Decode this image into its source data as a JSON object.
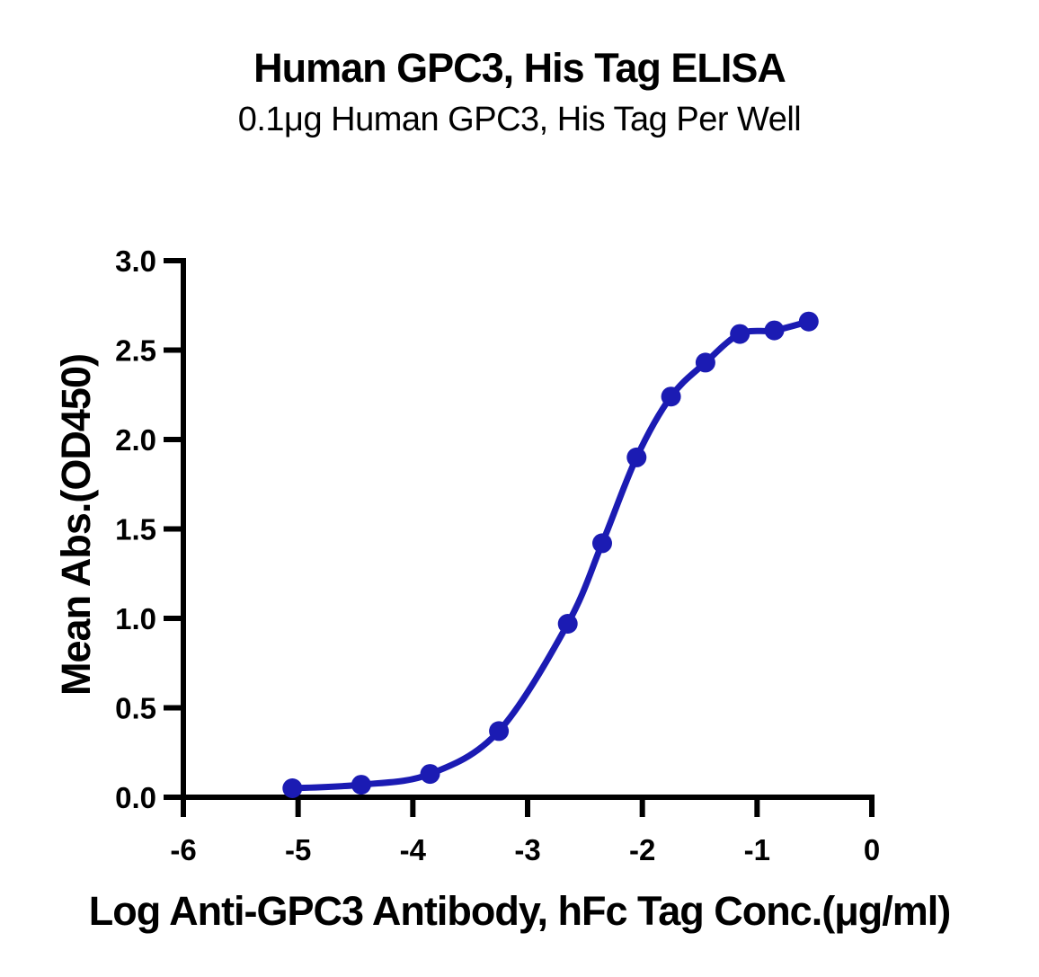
{
  "chart_data": {
    "type": "line",
    "title": "Human GPC3, His Tag ELISA",
    "subtitle": "0.1μg Human GPC3, His Tag Per Well",
    "xlabel": "Log Anti-GPC3 Antibody, hFc Tag Conc.(μg/ml)",
    "ylabel": "Mean Abs.(OD450)",
    "xlim": [
      -6,
      0
    ],
    "ylim": [
      0,
      3
    ],
    "x_ticks": [
      -6,
      -5,
      -4,
      -3,
      -2,
      -1,
      0
    ],
    "x_tick_labels": [
      "-6",
      "-5",
      "-4",
      "-3",
      "-2",
      "-1",
      "0"
    ],
    "y_ticks": [
      0,
      0.5,
      1,
      1.5,
      2,
      2.5,
      3
    ],
    "y_tick_labels": [
      "0.0",
      "0.5",
      "1.0",
      "1.5",
      "2.0",
      "2.5",
      "3.0"
    ],
    "grid": false,
    "legend": null,
    "axis_color": "#000000",
    "series": [
      {
        "color": "#1b1bb3",
        "marker": "circle",
        "x": [
          -5.05,
          -4.45,
          -3.85,
          -3.25,
          -2.65,
          -2.35,
          -2.05,
          -1.75,
          -1.45,
          -1.15,
          -0.85,
          -0.55
        ],
        "y": [
          0.05,
          0.07,
          0.13,
          0.37,
          0.97,
          1.42,
          1.9,
          2.24,
          2.43,
          2.59,
          2.61,
          2.66
        ]
      }
    ]
  }
}
